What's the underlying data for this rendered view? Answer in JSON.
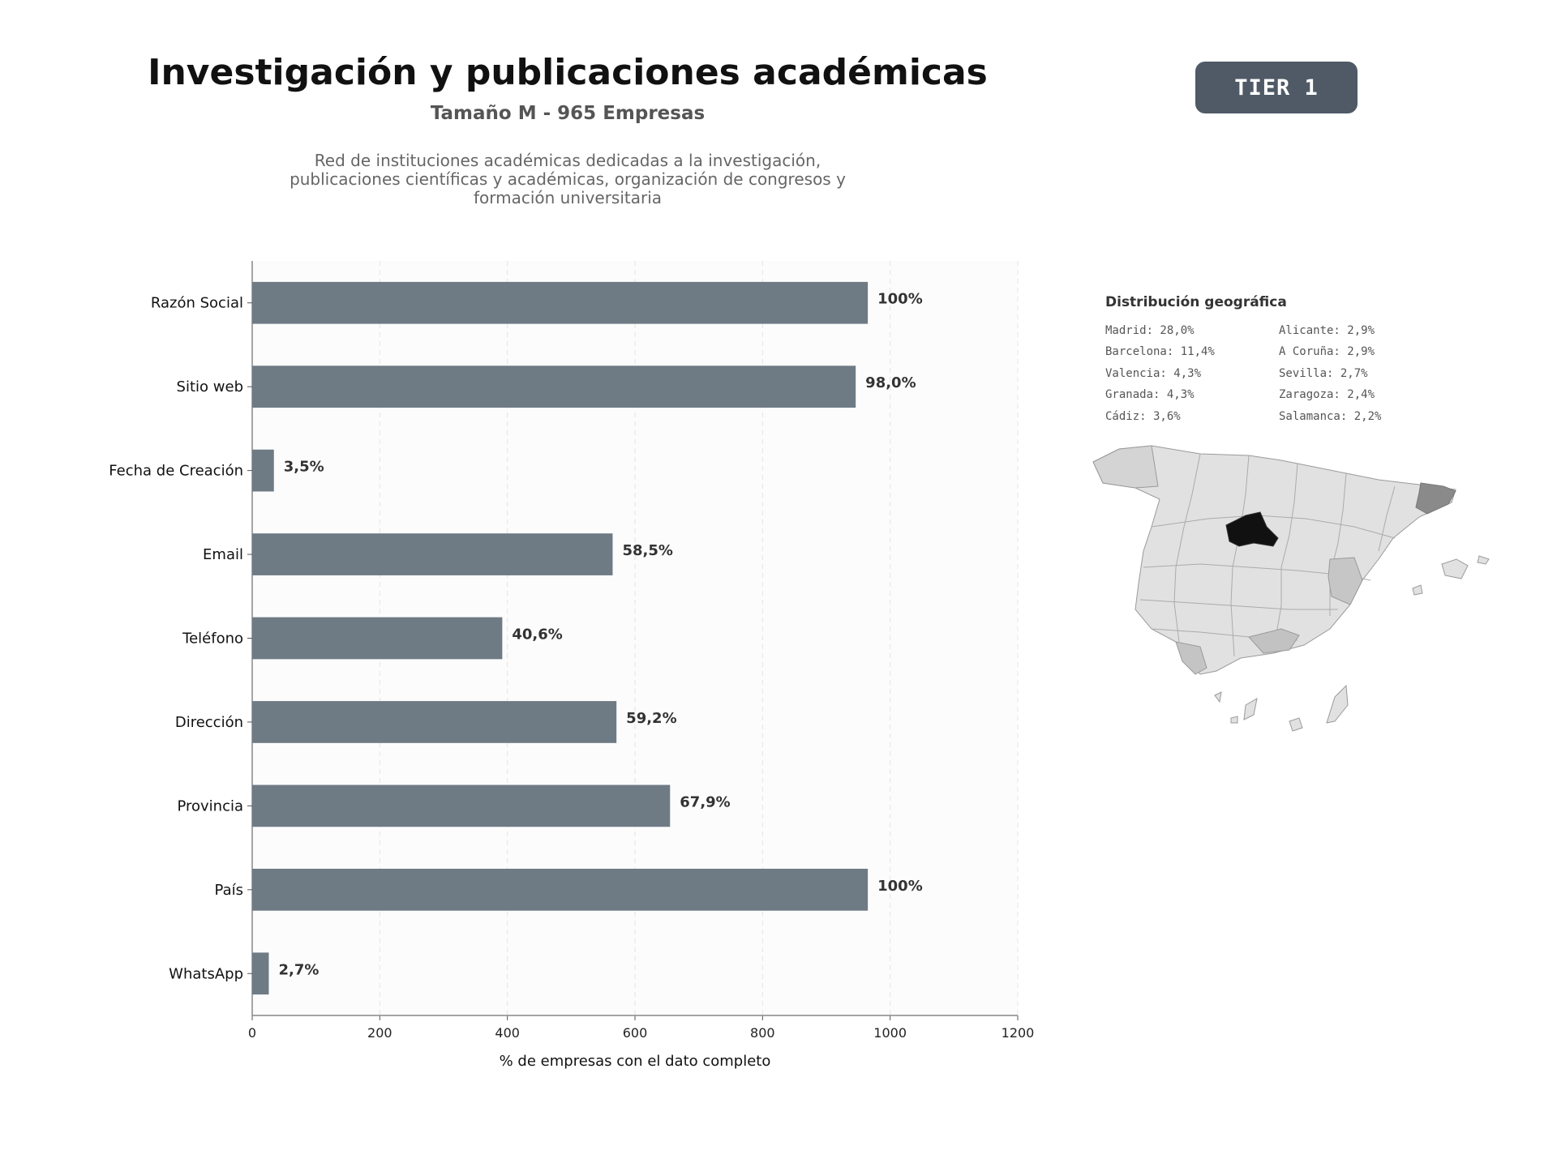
{
  "header": {
    "title": "Investigación y publicaciones académicas",
    "subtitle": "Tamaño M - 965 Empresas",
    "description_lines": [
      "Red de instituciones académicas dedicadas a la investigación,",
      "publicaciones científicas y académicas, organización de congresos y",
      "formación universitaria"
    ],
    "tier_badge": "TIER 1"
  },
  "colors": {
    "bar": "#6e7a84",
    "tier_badge_bg": "#4f5a66",
    "madrid": "#111111",
    "barcelona": "#8a8a8a"
  },
  "chart_data": {
    "type": "bar",
    "orientation": "horizontal",
    "categories": [
      "Razón Social",
      "Sitio web",
      "Fecha de Creación",
      "Email",
      "Teléfono",
      "Dirección",
      "Provincia",
      "País",
      "WhatsApp"
    ],
    "values": [
      965,
      946,
      34,
      565,
      392,
      571,
      655,
      965,
      26
    ],
    "data_labels": [
      "100%",
      "98,0%",
      "3,5%",
      "58,5%",
      "40,6%",
      "59,2%",
      "67,9%",
      "100%",
      "2,7%"
    ],
    "xlabel": "% de empresas con el dato completo",
    "xlim": [
      0,
      1200
    ],
    "xticks": [
      0,
      200,
      400,
      600,
      800,
      1000,
      1200
    ],
    "grid": "vertical dashed"
  },
  "geo": {
    "title": "Distribución geográfica",
    "items": [
      "Madrid: 28,0%",
      "Alicante: 2,9%",
      "Barcelona: 11,4%",
      "A Coruña: 2,9%",
      "Valencia: 4,3%",
      "Sevilla: 2,7%",
      "Granada: 4,3%",
      "Zaragoza: 2,4%",
      "Cádiz: 3,6%",
      "Salamanca: 2,2%"
    ]
  }
}
